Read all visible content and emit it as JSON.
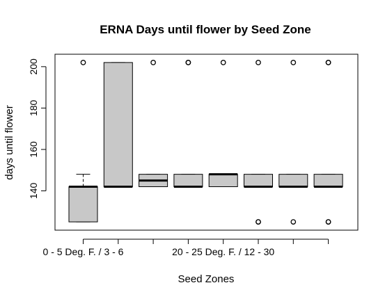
{
  "chart_data": {
    "type": "boxplot",
    "title": "ERNA Days until flower by Seed Zone",
    "xlabel": "Seed Zones",
    "ylabel": "days until flower",
    "ylim": [
      121,
      206
    ],
    "yticks": [
      140,
      160,
      180,
      200
    ],
    "grid": false,
    "categories": [
      "0 - 5 Deg. F. / 3 - 6",
      "",
      "",
      "",
      "20 - 25 Deg. F. / 12 - 30",
      "",
      "",
      ""
    ],
    "boxes": [
      {
        "whisker_low": 125,
        "q1": 125,
        "median": 142,
        "q3": 142,
        "whisker_high": 148,
        "outliers": [
          202
        ]
      },
      {
        "whisker_low": 142,
        "q1": 142,
        "median": 142,
        "q3": 202,
        "whisker_high": 202,
        "outliers": []
      },
      {
        "whisker_low": 142,
        "q1": 142,
        "median": 145,
        "q3": 148,
        "whisker_high": 148,
        "outliers": [
          202
        ]
      },
      {
        "whisker_low": 142,
        "q1": 142,
        "median": 142,
        "q3": 148,
        "whisker_high": 148,
        "outliers": [
          202,
          202
        ]
      },
      {
        "whisker_low": 142,
        "q1": 142,
        "median": 148,
        "q3": 148,
        "whisker_high": 148,
        "outliers": [
          202
        ]
      },
      {
        "whisker_low": 142,
        "q1": 142,
        "median": 142,
        "q3": 148,
        "whisker_high": 148,
        "outliers": [
          202,
          125,
          125
        ]
      },
      {
        "whisker_low": 142,
        "q1": 142,
        "median": 142,
        "q3": 148,
        "whisker_high": 148,
        "outliers": [
          202,
          125
        ]
      },
      {
        "whisker_low": 142,
        "q1": 142,
        "median": 142,
        "q3": 148,
        "whisker_high": 148,
        "outliers": [
          202,
          202,
          125,
          125
        ]
      }
    ],
    "box_fill": "#c8c8c8",
    "line_color": "#000000"
  }
}
